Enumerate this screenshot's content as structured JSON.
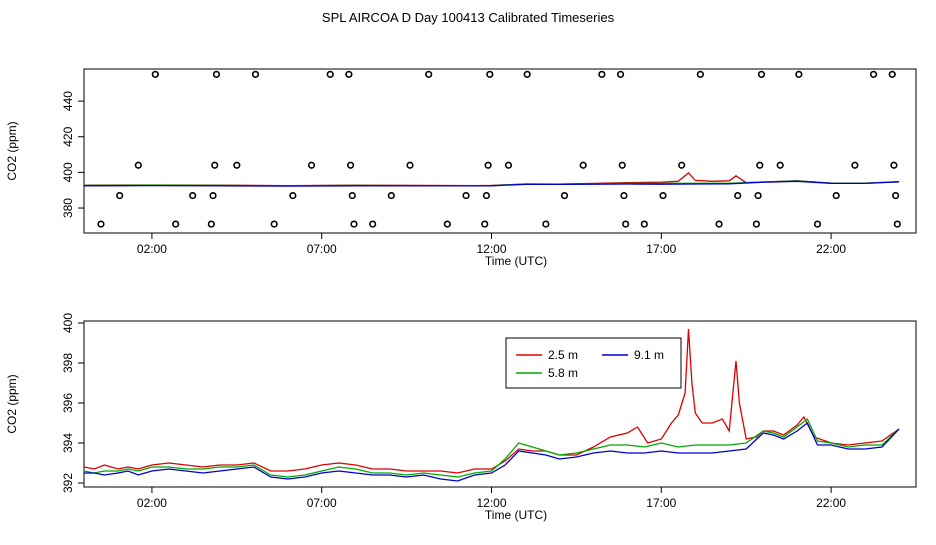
{
  "title": "SPL AIRCOA D  Day 100413  Calibrated Timeseries",
  "chart_data": [
    {
      "type": "line",
      "panel": "top",
      "xlabel": "Time (UTC)",
      "ylabel": "CO2 (ppm)",
      "x_unit": "hours UTC",
      "xlim": [
        0,
        24.5
      ],
      "ylim": [
        366,
        458
      ],
      "x_ticks": [
        {
          "x": 2,
          "label": "02:00"
        },
        {
          "x": 7,
          "label": "07:00"
        },
        {
          "x": 12,
          "label": "12:00"
        },
        {
          "x": 17,
          "label": "17:00"
        },
        {
          "x": 22,
          "label": "22:00"
        }
      ],
      "y_ticks": [
        380,
        400,
        420,
        440
      ],
      "series": [
        {
          "name": "2.5 m",
          "color": "#dd0000",
          "x": [
            0,
            2,
            4,
            6,
            8,
            10,
            11.5,
            12,
            13,
            14,
            15,
            16,
            17,
            17.5,
            17.8,
            18,
            18.5,
            19,
            19.2,
            19.5,
            20,
            21,
            22,
            23,
            24
          ],
          "y": [
            392.8,
            392.9,
            392.8,
            392.6,
            392.8,
            392.7,
            392.6,
            392.7,
            393.5,
            393.4,
            393.8,
            394.3,
            394.5,
            395.0,
            399.7,
            395.5,
            395.0,
            395.3,
            398.1,
            394.2,
            394.6,
            395.3,
            394.0,
            394.0,
            394.7
          ]
        },
        {
          "name": "5.8 m",
          "color": "#00aa00",
          "x": [
            0,
            2,
            4,
            6,
            8,
            10,
            12,
            13,
            14,
            15,
            16,
            17,
            18,
            19,
            20,
            21,
            22,
            23,
            24
          ],
          "y": [
            392.7,
            392.8,
            392.7,
            392.5,
            392.7,
            392.6,
            392.6,
            393.5,
            393.4,
            393.6,
            393.8,
            393.8,
            393.9,
            393.9,
            394.6,
            395.2,
            394.0,
            393.9,
            394.7
          ]
        },
        {
          "name": "9.1 m",
          "color": "#0000cc",
          "x": [
            0,
            2,
            4,
            6,
            8,
            10,
            12,
            13,
            14,
            15,
            16,
            17,
            18,
            19,
            20,
            21,
            22,
            23,
            24
          ],
          "y": [
            392.5,
            392.6,
            392.5,
            392.3,
            392.5,
            392.4,
            392.5,
            393.3,
            393.3,
            393.4,
            393.5,
            393.4,
            393.5,
            393.6,
            394.5,
            395.0,
            393.9,
            393.8,
            394.7
          ]
        }
      ],
      "scatter": {
        "marker": "open-circle",
        "points": [
          {
            "x": 0.5,
            "y": 371
          },
          {
            "x": 1.05,
            "y": 387
          },
          {
            "x": 1.6,
            "y": 404
          },
          {
            "x": 2.1,
            "y": 455
          },
          {
            "x": 2.7,
            "y": 371
          },
          {
            "x": 3.2,
            "y": 387
          },
          {
            "x": 3.75,
            "y": 371
          },
          {
            "x": 3.8,
            "y": 387
          },
          {
            "x": 3.85,
            "y": 404
          },
          {
            "x": 3.9,
            "y": 455
          },
          {
            "x": 4.5,
            "y": 404
          },
          {
            "x": 5.05,
            "y": 455
          },
          {
            "x": 5.6,
            "y": 371
          },
          {
            "x": 6.15,
            "y": 387
          },
          {
            "x": 6.7,
            "y": 404
          },
          {
            "x": 7.25,
            "y": 455
          },
          {
            "x": 7.8,
            "y": 455
          },
          {
            "x": 7.85,
            "y": 404
          },
          {
            "x": 7.9,
            "y": 387
          },
          {
            "x": 7.95,
            "y": 371
          },
          {
            "x": 8.5,
            "y": 371
          },
          {
            "x": 9.05,
            "y": 387
          },
          {
            "x": 9.6,
            "y": 404
          },
          {
            "x": 10.15,
            "y": 455
          },
          {
            "x": 10.7,
            "y": 371
          },
          {
            "x": 11.25,
            "y": 387
          },
          {
            "x": 11.8,
            "y": 371
          },
          {
            "x": 11.85,
            "y": 387
          },
          {
            "x": 11.9,
            "y": 404
          },
          {
            "x": 11.95,
            "y": 455
          },
          {
            "x": 12.5,
            "y": 404
          },
          {
            "x": 13.05,
            "y": 455
          },
          {
            "x": 13.6,
            "y": 371
          },
          {
            "x": 14.15,
            "y": 387
          },
          {
            "x": 14.7,
            "y": 404
          },
          {
            "x": 15.25,
            "y": 455
          },
          {
            "x": 15.8,
            "y": 455
          },
          {
            "x": 15.85,
            "y": 404
          },
          {
            "x": 15.9,
            "y": 387
          },
          {
            "x": 15.95,
            "y": 371
          },
          {
            "x": 16.5,
            "y": 371
          },
          {
            "x": 17.05,
            "y": 387
          },
          {
            "x": 17.6,
            "y": 404
          },
          {
            "x": 18.15,
            "y": 455
          },
          {
            "x": 18.7,
            "y": 371
          },
          {
            "x": 19.25,
            "y": 387
          },
          {
            "x": 19.8,
            "y": 371
          },
          {
            "x": 19.85,
            "y": 387
          },
          {
            "x": 19.9,
            "y": 404
          },
          {
            "x": 19.95,
            "y": 455
          },
          {
            "x": 20.5,
            "y": 404
          },
          {
            "x": 21.05,
            "y": 455
          },
          {
            "x": 21.6,
            "y": 371
          },
          {
            "x": 22.15,
            "y": 387
          },
          {
            "x": 22.7,
            "y": 404
          },
          {
            "x": 23.25,
            "y": 455
          },
          {
            "x": 23.8,
            "y": 455
          },
          {
            "x": 23.85,
            "y": 404
          },
          {
            "x": 23.9,
            "y": 387
          },
          {
            "x": 23.95,
            "y": 371
          }
        ]
      }
    },
    {
      "type": "line",
      "panel": "bottom",
      "xlabel": "Time (UTC)",
      "ylabel": "CO2 (ppm)",
      "x_unit": "hours UTC",
      "xlim": [
        0,
        24.5
      ],
      "ylim": [
        391.8,
        400.1
      ],
      "x_ticks": [
        {
          "x": 2,
          "label": "02:00"
        },
        {
          "x": 7,
          "label": "07:00"
        },
        {
          "x": 12,
          "label": "12:00"
        },
        {
          "x": 17,
          "label": "17:00"
        },
        {
          "x": 22,
          "label": "22:00"
        }
      ],
      "y_ticks": [
        392,
        394,
        396,
        398,
        400
      ],
      "legend": {
        "position": "top-center",
        "entries": [
          "2.5 m",
          "9.1 m",
          "5.8 m"
        ]
      },
      "series": [
        {
          "name": "2.5 m",
          "color": "#dd0000",
          "x": [
            0,
            0.3,
            0.6,
            1,
            1.3,
            1.6,
            2,
            2.5,
            3,
            3.5,
            4,
            4.5,
            5,
            5.5,
            6,
            6.5,
            7,
            7.5,
            8,
            8.5,
            9,
            9.5,
            10,
            10.5,
            11,
            11.5,
            12,
            12.4,
            12.8,
            13.2,
            13.6,
            14,
            14.5,
            15,
            15.5,
            16,
            16.3,
            16.6,
            17,
            17.3,
            17.5,
            17.7,
            17.8,
            17.9,
            18,
            18.2,
            18.5,
            18.8,
            19,
            19.2,
            19.3,
            19.5,
            19.8,
            20,
            20.3,
            20.6,
            21,
            21.2,
            21.5,
            22,
            22.5,
            23,
            23.5,
            24
          ],
          "y": [
            392.8,
            392.7,
            392.9,
            392.7,
            392.8,
            392.7,
            392.9,
            393.0,
            392.9,
            392.8,
            392.9,
            392.9,
            393.0,
            392.6,
            392.6,
            392.7,
            392.9,
            393.0,
            392.9,
            392.7,
            392.7,
            392.6,
            392.6,
            392.6,
            392.5,
            392.7,
            392.7,
            393.1,
            393.7,
            393.6,
            393.6,
            393.4,
            393.4,
            393.8,
            394.3,
            394.5,
            394.8,
            394.0,
            394.2,
            395.0,
            395.4,
            396.5,
            399.7,
            397.0,
            395.5,
            395.0,
            395.0,
            395.2,
            394.6,
            398.1,
            396.0,
            394.2,
            394.3,
            394.6,
            394.6,
            394.4,
            394.9,
            395.3,
            394.3,
            394.0,
            393.9,
            394.0,
            394.1,
            394.7
          ]
        },
        {
          "name": "5.8 m",
          "color": "#00aa00",
          "x": [
            0,
            0.3,
            0.6,
            1,
            1.3,
            1.6,
            2,
            2.5,
            3,
            3.5,
            4,
            4.5,
            5,
            5.5,
            6,
            6.5,
            7,
            7.5,
            8,
            8.5,
            9,
            9.5,
            10,
            10.5,
            11,
            11.5,
            12,
            12.4,
            12.8,
            13.2,
            13.6,
            14,
            14.5,
            15,
            15.5,
            16,
            16.5,
            17,
            17.5,
            18,
            18.5,
            19,
            19.5,
            20,
            20.3,
            20.6,
            21,
            21.3,
            21.6,
            22,
            22.5,
            23,
            23.5,
            24
          ],
          "y": [
            392.6,
            392.5,
            392.6,
            392.6,
            392.7,
            392.6,
            392.8,
            392.8,
            392.7,
            392.7,
            392.8,
            392.8,
            392.9,
            392.4,
            392.3,
            392.4,
            392.6,
            392.8,
            392.7,
            392.5,
            392.5,
            392.4,
            392.5,
            392.4,
            392.3,
            392.5,
            392.6,
            393.2,
            394.0,
            393.8,
            393.6,
            393.4,
            393.5,
            393.7,
            393.9,
            393.9,
            393.8,
            394.0,
            393.8,
            393.9,
            393.9,
            393.9,
            394.0,
            394.6,
            394.5,
            394.3,
            394.8,
            395.2,
            394.1,
            394.0,
            393.8,
            393.9,
            393.9,
            394.7
          ]
        },
        {
          "name": "9.1 m",
          "color": "#0000cc",
          "x": [
            0,
            0.3,
            0.6,
            1,
            1.3,
            1.6,
            2,
            2.5,
            3,
            3.5,
            4,
            4.5,
            5,
            5.5,
            6,
            6.5,
            7,
            7.5,
            8,
            8.5,
            9,
            9.5,
            10,
            10.5,
            11,
            11.5,
            12,
            12.4,
            12.8,
            13.2,
            13.6,
            14,
            14.5,
            15,
            15.5,
            16,
            16.5,
            17,
            17.5,
            18,
            18.5,
            19,
            19.5,
            20,
            20.3,
            20.6,
            21,
            21.3,
            21.6,
            22,
            22.5,
            23,
            23.5,
            24
          ],
          "y": [
            392.5,
            392.5,
            392.4,
            392.5,
            392.6,
            392.4,
            392.6,
            392.7,
            392.6,
            392.5,
            392.6,
            392.7,
            392.8,
            392.3,
            392.2,
            392.3,
            392.5,
            392.6,
            392.5,
            392.4,
            392.4,
            392.3,
            392.4,
            392.2,
            392.1,
            392.4,
            392.5,
            392.9,
            393.6,
            393.5,
            393.4,
            393.2,
            393.3,
            393.5,
            393.6,
            393.5,
            393.5,
            393.6,
            393.5,
            393.5,
            393.5,
            393.6,
            393.7,
            394.5,
            394.4,
            394.2,
            394.6,
            395.0,
            393.9,
            393.9,
            393.7,
            393.7,
            393.8,
            394.7
          ]
        }
      ]
    }
  ]
}
